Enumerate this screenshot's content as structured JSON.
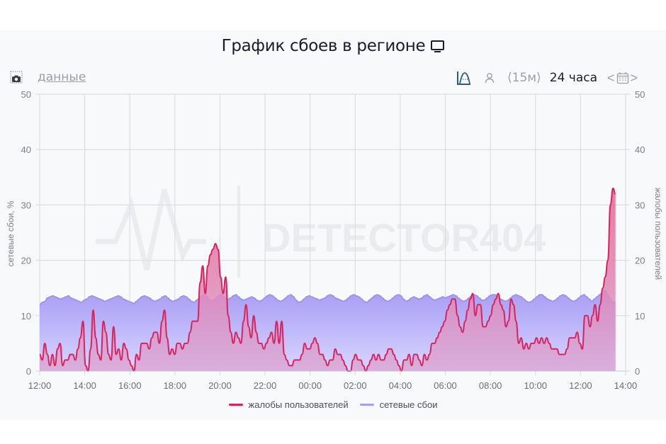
{
  "header": {
    "title": "График сбоев в регионе",
    "title_icon": "monitor-icon"
  },
  "toolbar": {
    "screenshot_icon": "camera-icon",
    "data_link": "данные",
    "chart_type_icon": "area-chart-icon",
    "user_icon": "user-icon",
    "interval_prev": "⟨",
    "interval": "15м",
    "interval_next": "⟩",
    "period": "24 часа",
    "date_prev": "<",
    "calendar_icon": "calendar-icon",
    "date_next": ">"
  },
  "legend": [
    {
      "label": "жалобы пользователей",
      "color": "#d6245e"
    },
    {
      "label": "сетевые сбои",
      "color": "#a79cf0"
    }
  ],
  "watermark": "DETECTOR404",
  "colors": {
    "complaints_line": "#d6245e",
    "complaints_fill_top": "#e8628f",
    "complaints_fill_bottom": "#d9a8d6",
    "outages_line": "#9d92e6",
    "outages_fill_top": "#a89cf5",
    "outages_fill_bottom": "#d8d6ff",
    "grid": "#d6d8dc",
    "background": "#f8f9fb"
  },
  "chart_data": {
    "type": "area",
    "title": "График сбоев в регионе",
    "xlabel": "",
    "ylabel_left": "сетевые сбои, %",
    "ylabel_right": "жалобы пользователей",
    "ylim": [
      0,
      50
    ],
    "yticks": [
      0,
      10,
      20,
      30,
      40,
      50
    ],
    "x_tick_labels": [
      "12:00",
      "14:00",
      "16:00",
      "18:00",
      "20:00",
      "22:00",
      "00:00",
      "02:00",
      "04:00",
      "06:00",
      "08:00",
      "10:00",
      "12:00",
      "14:00"
    ],
    "x_start": "12:00",
    "x_step_minutes": 15,
    "grid": true,
    "legend_position": "bottom",
    "series": [
      {
        "name": "жалобы пользователей",
        "axis": "right",
        "values": [
          3,
          2,
          5,
          3,
          1,
          3,
          1,
          4,
          5,
          1,
          2,
          2,
          3,
          3,
          2,
          4,
          6,
          9,
          1,
          0,
          4,
          11,
          6,
          3,
          2,
          9,
          7,
          3,
          2,
          8,
          3,
          4,
          2,
          5,
          4,
          2,
          1,
          0,
          3,
          2,
          5,
          5,
          5,
          4,
          6,
          7,
          7,
          5,
          9,
          11,
          6,
          3,
          4,
          3,
          5,
          5,
          4,
          5,
          5,
          7,
          9,
          9,
          9,
          16,
          19,
          14,
          19,
          21,
          22,
          23,
          22,
          17,
          14,
          17,
          10,
          7,
          5,
          7,
          6,
          5,
          9,
          12,
          8,
          6,
          10,
          7,
          5,
          5,
          4,
          5,
          6,
          7,
          5,
          9,
          5,
          9,
          3,
          2,
          1,
          1,
          2,
          2,
          2,
          3,
          5,
          4,
          4,
          5,
          6,
          5,
          3,
          3,
          2,
          1,
          2,
          2,
          4,
          3,
          3,
          2,
          1,
          0,
          0,
          2,
          3,
          2,
          2,
          1,
          0,
          1,
          2,
          3,
          2,
          3,
          2,
          2,
          3,
          4,
          4,
          3,
          2,
          1,
          0,
          2,
          2,
          3,
          1,
          3,
          3,
          2,
          1,
          3,
          2,
          3,
          5,
          5,
          6,
          7,
          8,
          9,
          11,
          12,
          13,
          13,
          10,
          8,
          7,
          9,
          11,
          13,
          14,
          10,
          12,
          12,
          8,
          8,
          9,
          10,
          12,
          13,
          14,
          12,
          11,
          8,
          9,
          13,
          12,
          9,
          5,
          6,
          4,
          5,
          4,
          5,
          5,
          6,
          5,
          6,
          5,
          6,
          5,
          4,
          4,
          4,
          3,
          3,
          3,
          4,
          6,
          6,
          6,
          7,
          5,
          4,
          10,
          10,
          8,
          10,
          12,
          9,
          12,
          15,
          17,
          20,
          30,
          33,
          32
        ],
        "color": "#d6245e"
      },
      {
        "name": "сетевые сбои",
        "axis": "left",
        "values": [
          12,
          12.4,
          12.6,
          13.2,
          13.4,
          13.6,
          13.4,
          13.2,
          13,
          13.2,
          13.4,
          13.6,
          13.2,
          13,
          12.8,
          12.6,
          12.4,
          12.8,
          13,
          13.4,
          13.6,
          13.4,
          13.2,
          13,
          12.8,
          12.6,
          12.8,
          13,
          13.2,
          13.4,
          13.6,
          13.4,
          13,
          12.8,
          12.6,
          12.4,
          12.2,
          12.6,
          13,
          13.4,
          13.6,
          13.4,
          13.2,
          12.8,
          12.6,
          12.8,
          13,
          13.4,
          13.6,
          13.2,
          12.8,
          12.6,
          12.8,
          13,
          13.4,
          13.6,
          13.4,
          13,
          12.6,
          12.4,
          12.8,
          13.2,
          13.6,
          13.8,
          13.4,
          12.8,
          12.6,
          13,
          13.4,
          13.8,
          13.6,
          13.2,
          13,
          13.2,
          13.6,
          13.8,
          13.4,
          13,
          12.8,
          13,
          13.2,
          13.4,
          13.2,
          12.8,
          12.6,
          12.8,
          13.2,
          13.6,
          13.8,
          13.6,
          13.2,
          12.8,
          12.6,
          12.8,
          13.2,
          13.6,
          13.8,
          13.4,
          12.8,
          12.4,
          12.6,
          13,
          13.4,
          13.6,
          13.4,
          13.2,
          13,
          12.8,
          13,
          13.2,
          13.6,
          13.8,
          13.6,
          13.2,
          13,
          12.8,
          12.6,
          12.8,
          13.2,
          13.6,
          13.8,
          13.6,
          13.4,
          13,
          12.6,
          12.4,
          12.8,
          13.2,
          13.6,
          13.8,
          13.6,
          13.2,
          12.8,
          12.6,
          12.8,
          13.2,
          13.6,
          13.8,
          13.6,
          13,
          12.6,
          12.8,
          13.2,
          13.4,
          13.2,
          13,
          13.2,
          13.6,
          13.8,
          13.4,
          13,
          12.8,
          13,
          13.2,
          13.4,
          13.2,
          13.4,
          13.6,
          13.8,
          13.6,
          13.2,
          12.8,
          12.6,
          12.8,
          13.2,
          13.6,
          13.8,
          13.6,
          13.2,
          12.8,
          12.8,
          13.2,
          13.6,
          13.8,
          13.8,
          13.4,
          13,
          12.8,
          12.6,
          12.8,
          13.2,
          13.6,
          13.8,
          13.6,
          13.4,
          13,
          12.6,
          12.4,
          12.6,
          13,
          13.4,
          13.8,
          13.8,
          13.4,
          13,
          12.8,
          12.6,
          12.8,
          13.2,
          13.6,
          13.8,
          13.6,
          13.2,
          12.8,
          12.6,
          12.8,
          13.2,
          13.6,
          13.8,
          13.4,
          13,
          12.6,
          13,
          13.4,
          13.8,
          14.2,
          14.6,
          13.8,
          13,
          12.4,
          12.4
        ],
        "color": "#a79cf0"
      }
    ]
  }
}
